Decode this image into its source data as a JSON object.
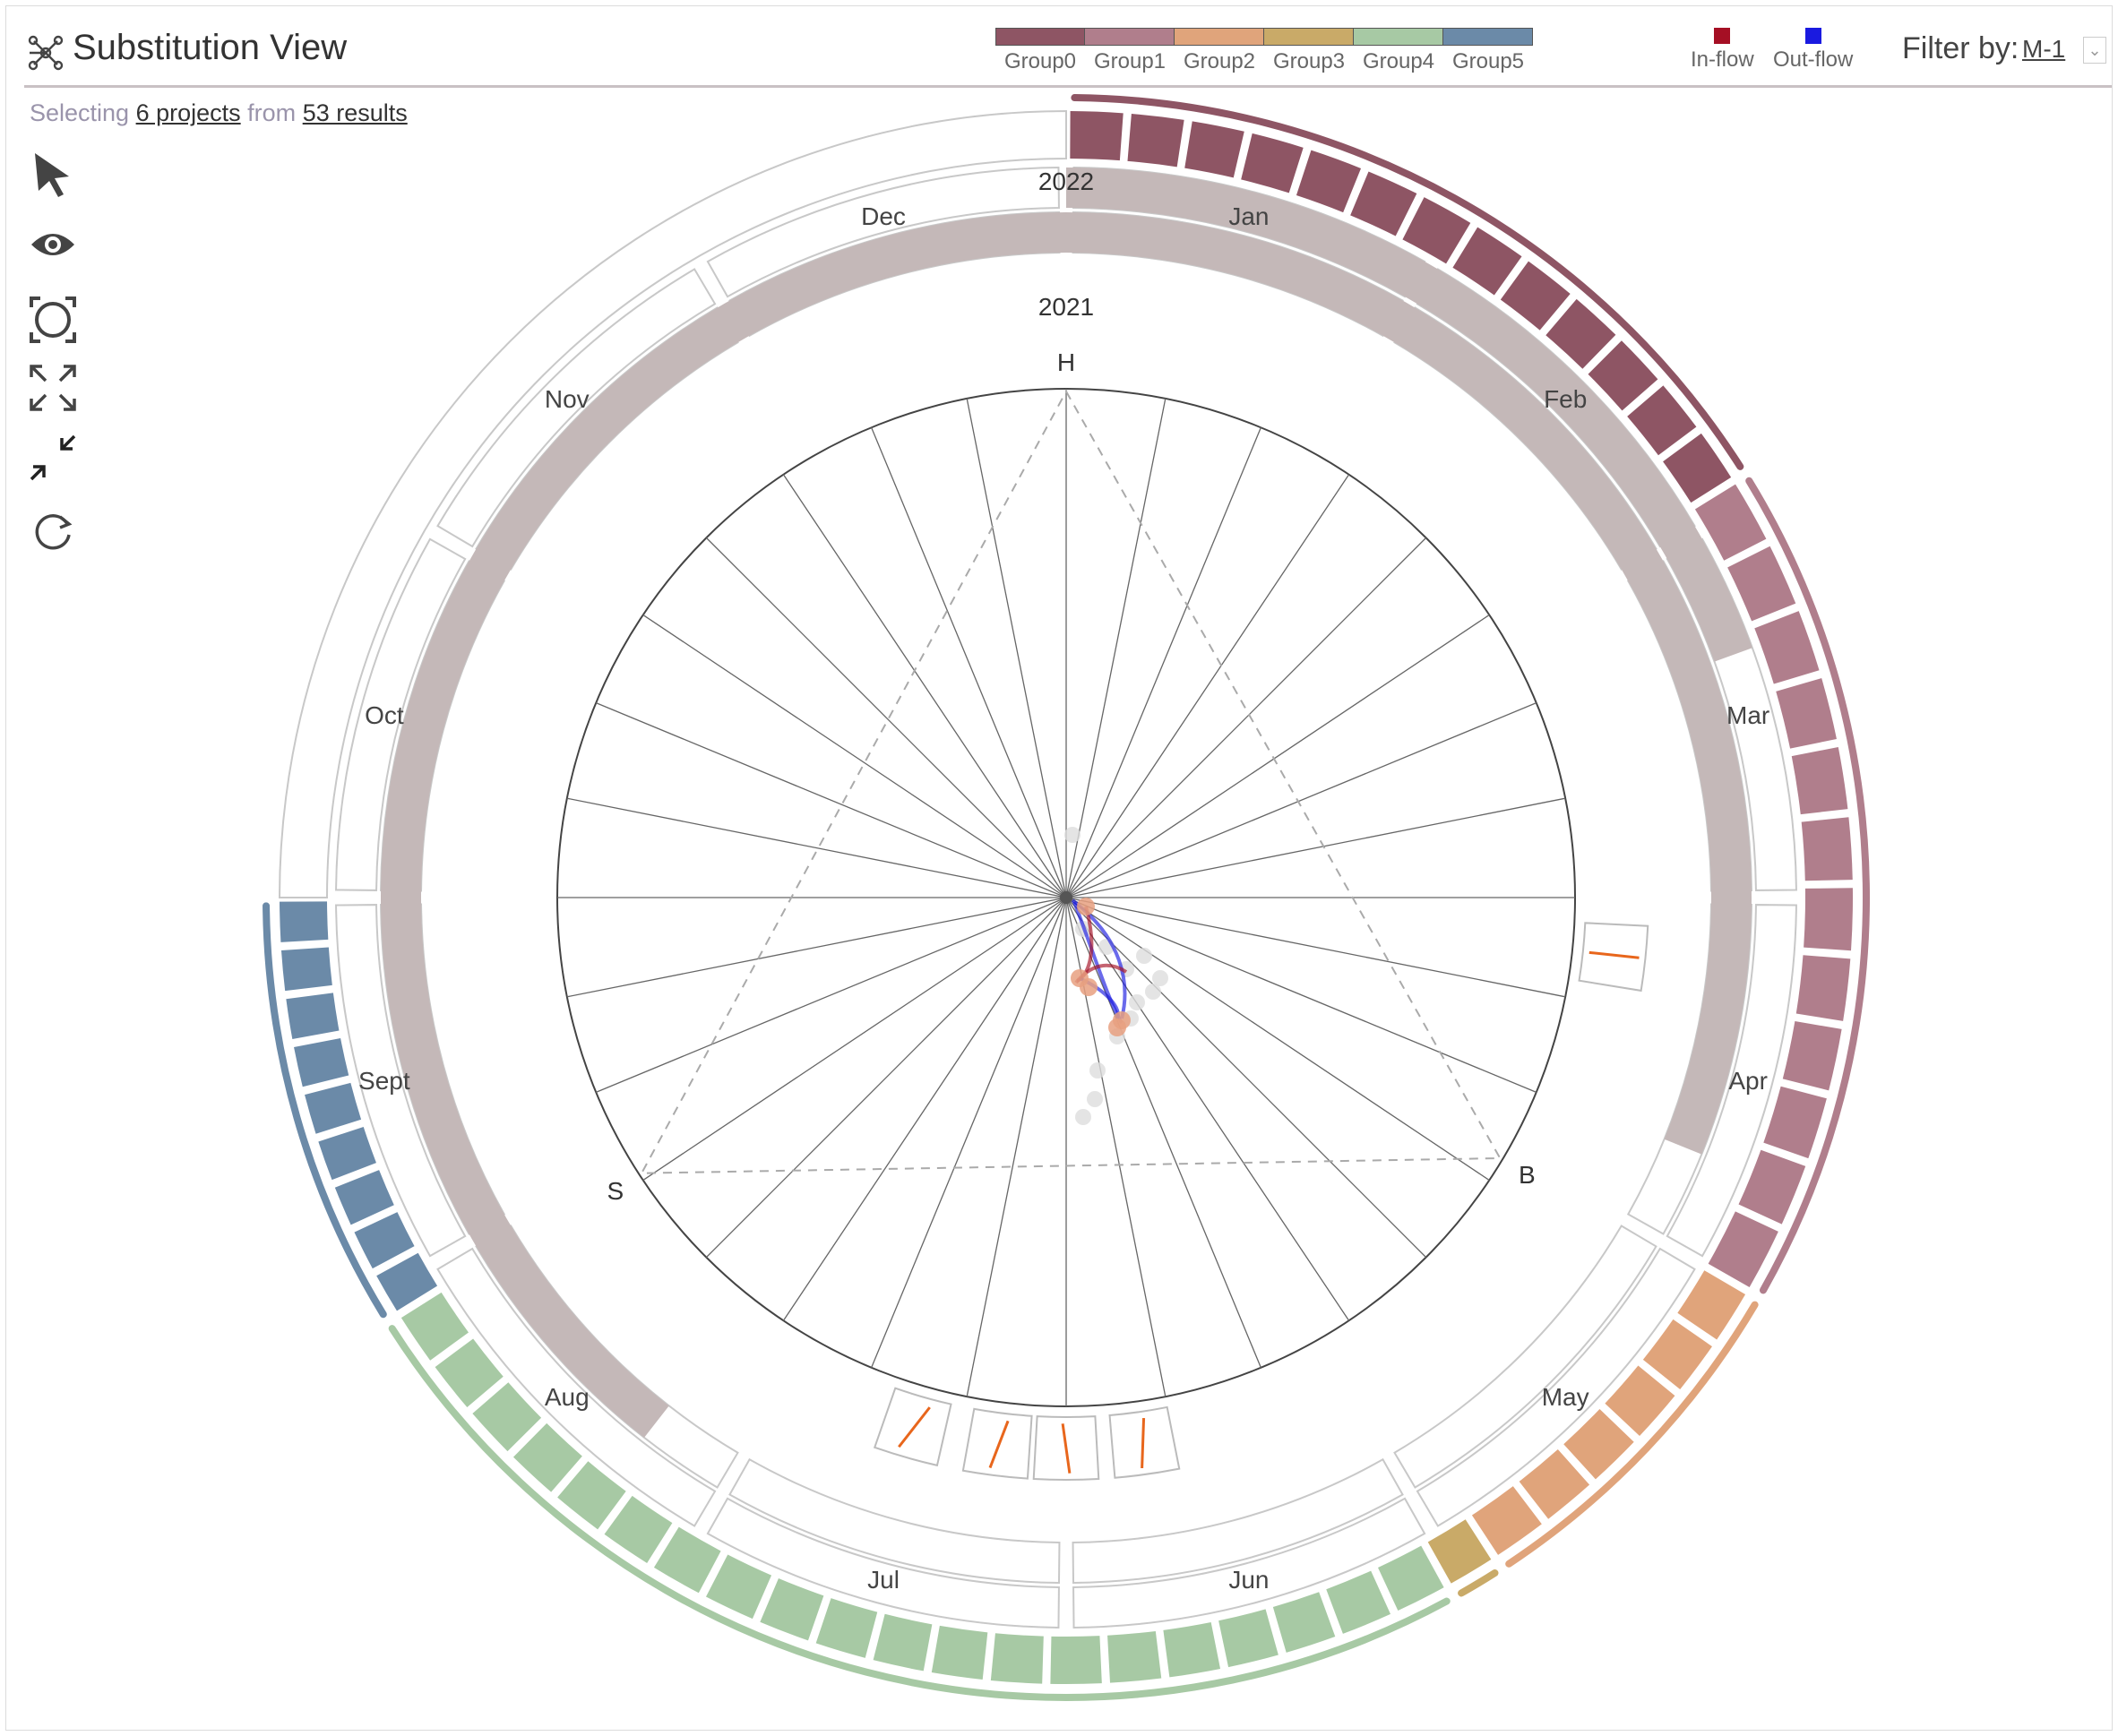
{
  "header": {
    "title": "Substitution View",
    "title_icon": "network-icon"
  },
  "legend": {
    "groups": [
      {
        "label": "Group0",
        "color": "#8e5564"
      },
      {
        "label": "Group1",
        "color": "#b07e8c"
      },
      {
        "label": "Group2",
        "color": "#e0a47b"
      },
      {
        "label": "Group3",
        "color": "#c9aa68"
      },
      {
        "label": "Group4",
        "color": "#a7c9a4"
      },
      {
        "label": "Group5",
        "color": "#6b8aa8"
      }
    ],
    "inflow": {
      "label": "In-flow",
      "color": "#a50f24"
    },
    "outflow": {
      "label": "Out-flow",
      "color": "#1a1ae0"
    }
  },
  "filter": {
    "label": "Filter by:",
    "value": "M-1"
  },
  "selection": {
    "prefix": "Selecting",
    "projects": "6 projects",
    "middle": "from",
    "results": "53 results"
  },
  "toolbar": [
    {
      "name": "select-pointer-icon"
    },
    {
      "name": "eye-icon"
    },
    {
      "name": "focus-circle-icon"
    },
    {
      "name": "expand-icon"
    },
    {
      "name": "collapse-icon"
    },
    {
      "name": "refresh-icon"
    }
  ],
  "chart": {
    "year_labels": {
      "outer": "2022",
      "inner": "2021"
    },
    "months": [
      "Jan",
      "Feb",
      "Mar",
      "Apr",
      "May",
      "Jun",
      "Jul",
      "Aug",
      "Sept",
      "Oct",
      "Nov",
      "Dec"
    ],
    "axis_labels": {
      "top": "H",
      "left": "S",
      "right": "B"
    }
  }
}
